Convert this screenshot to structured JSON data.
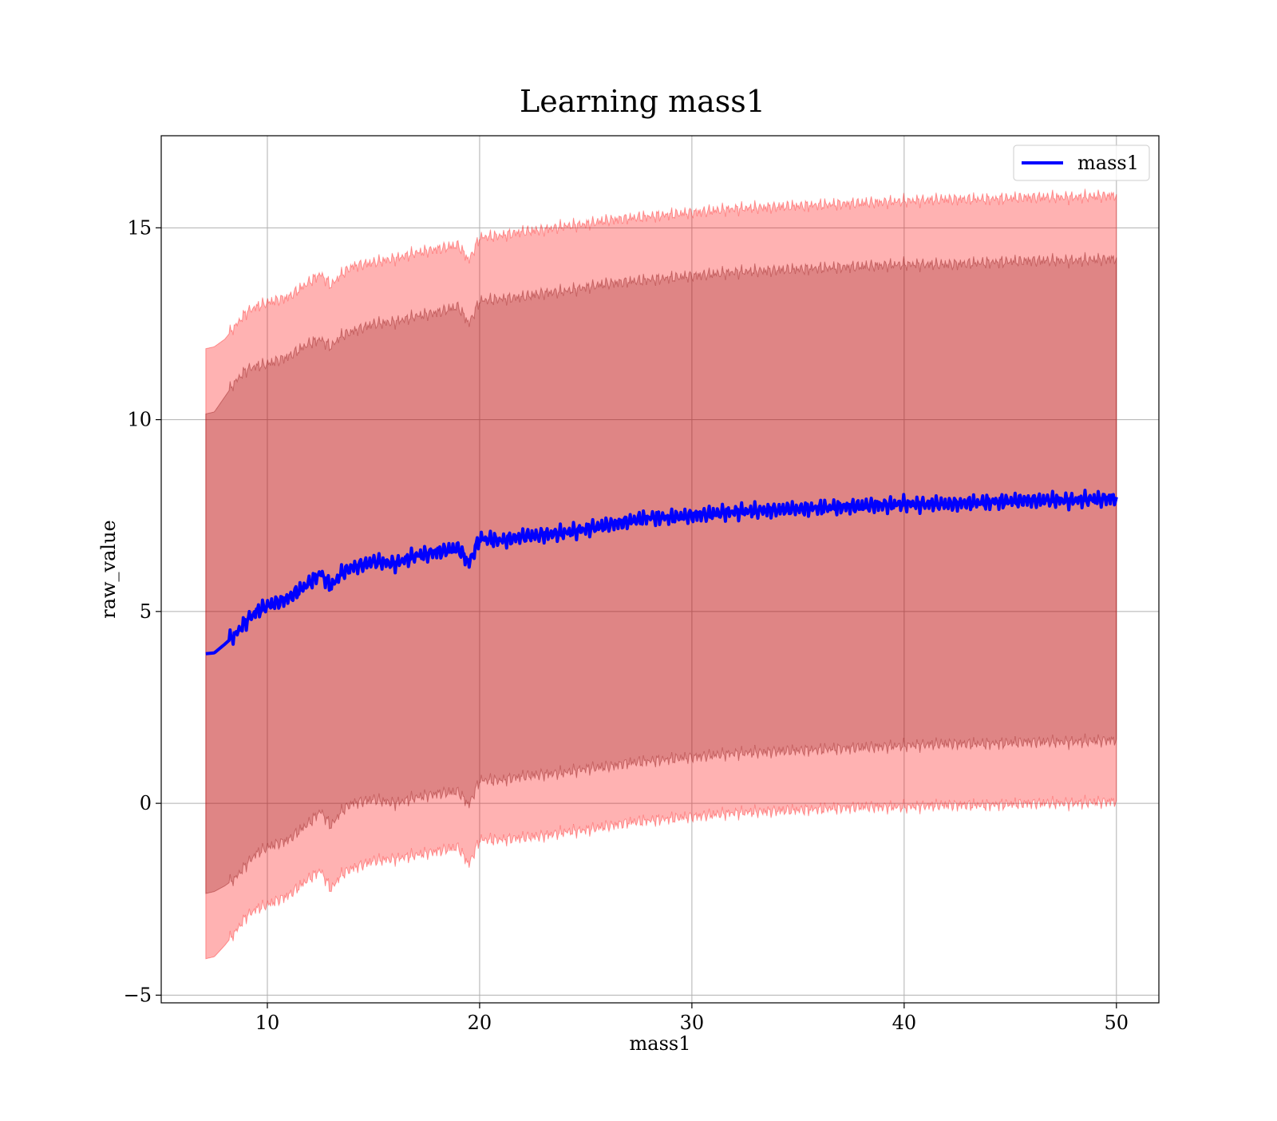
{
  "chart_data": {
    "type": "line",
    "title": "Learning mass1",
    "xlabel": "mass1",
    "ylabel": "raw_value",
    "xlim": [
      5,
      52
    ],
    "ylim": [
      -5.2,
      17.4
    ],
    "xticks": [
      10,
      20,
      30,
      40,
      50
    ],
    "xtick_labels": [
      "10",
      "20",
      "30",
      "40",
      "50"
    ],
    "yticks": [
      -5,
      0,
      5,
      10,
      15
    ],
    "ytick_labels": [
      "−5",
      "0",
      "5",
      "10",
      "15"
    ],
    "grid": true,
    "legend_position": "top-right",
    "series": [
      {
        "name": "mass1",
        "color": "#0000ff",
        "x": [
          7.1,
          7.5,
          8,
          8.5,
          9,
          9.5,
          10,
          11,
          12,
          12.5,
          13,
          13.5,
          14,
          15,
          16,
          17,
          18,
          19,
          19.5,
          20,
          21,
          22,
          23,
          24,
          25,
          26,
          27,
          28,
          29,
          30,
          32,
          34,
          36,
          38,
          40,
          42,
          44,
          46,
          48,
          50
        ],
        "values": [
          3.9,
          3.92,
          4.15,
          4.4,
          4.75,
          5.0,
          5.15,
          5.35,
          5.75,
          6.0,
          5.65,
          6.0,
          6.15,
          6.3,
          6.25,
          6.45,
          6.55,
          6.65,
          6.25,
          6.9,
          6.85,
          6.95,
          7.0,
          7.05,
          7.15,
          7.25,
          7.35,
          7.45,
          7.45,
          7.5,
          7.6,
          7.65,
          7.7,
          7.75,
          7.8,
          7.8,
          7.85,
          7.9,
          7.9,
          7.95
        ]
      }
    ],
    "bands": [
      {
        "sigma": 1,
        "color": "#800000",
        "opacity": 0.25,
        "upper": [
          10.15,
          10.2,
          10.6,
          11.0,
          11.3,
          11.4,
          11.45,
          11.65,
          12.0,
          12.1,
          11.9,
          12.2,
          12.3,
          12.5,
          12.55,
          12.7,
          12.8,
          12.95,
          12.5,
          13.1,
          13.15,
          13.2,
          13.3,
          13.35,
          13.45,
          13.55,
          13.6,
          13.65,
          13.7,
          13.75,
          13.85,
          13.9,
          13.95,
          14.0,
          14.05,
          14.05,
          14.1,
          14.15,
          14.15,
          14.2
        ],
        "lower": [
          -2.35,
          -2.3,
          -2.15,
          -1.95,
          -1.6,
          -1.3,
          -1.15,
          -0.95,
          -0.5,
          -0.2,
          -0.6,
          -0.2,
          0.0,
          0.1,
          0.0,
          0.15,
          0.25,
          0.3,
          -0.05,
          0.6,
          0.6,
          0.7,
          0.75,
          0.8,
          0.9,
          0.95,
          1.05,
          1.1,
          1.15,
          1.2,
          1.3,
          1.35,
          1.4,
          1.45,
          1.5,
          1.55,
          1.55,
          1.6,
          1.6,
          1.65
        ]
      },
      {
        "sigma": 2,
        "color": "#ff0000",
        "opacity": 0.3,
        "upper": [
          11.85,
          11.9,
          12.1,
          12.45,
          12.8,
          12.95,
          13.05,
          13.2,
          13.6,
          13.8,
          13.5,
          13.8,
          14.0,
          14.1,
          14.2,
          14.35,
          14.45,
          14.55,
          14.15,
          14.75,
          14.8,
          14.9,
          14.95,
          15.05,
          15.1,
          15.2,
          15.25,
          15.3,
          15.35,
          15.4,
          15.5,
          15.55,
          15.6,
          15.65,
          15.7,
          15.75,
          15.75,
          15.8,
          15.8,
          15.85
        ],
        "lower": [
          -4.05,
          -4.0,
          -3.7,
          -3.35,
          -2.95,
          -2.75,
          -2.65,
          -2.4,
          -1.95,
          -1.75,
          -2.25,
          -1.85,
          -1.7,
          -1.5,
          -1.45,
          -1.35,
          -1.25,
          -1.15,
          -1.6,
          -0.95,
          -0.95,
          -0.9,
          -0.85,
          -0.75,
          -0.7,
          -0.6,
          -0.5,
          -0.45,
          -0.4,
          -0.35,
          -0.25,
          -0.2,
          -0.15,
          -0.1,
          -0.1,
          -0.05,
          -0.05,
          0.0,
          0.0,
          0.05
        ]
      }
    ]
  }
}
